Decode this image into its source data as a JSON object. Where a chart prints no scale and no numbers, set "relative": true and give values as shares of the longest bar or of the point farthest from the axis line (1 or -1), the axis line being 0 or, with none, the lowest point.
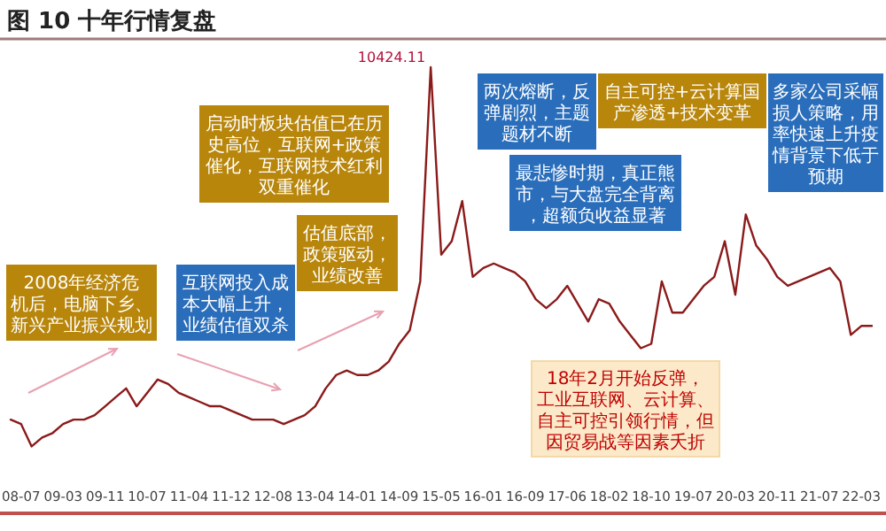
{
  "chart_data": {
    "type": "line",
    "title": "图 10 十年行情复盘",
    "relative": true,
    "categories": [
      null,
      "08-07",
      null,
      null,
      null,
      "09-03",
      null,
      null,
      null,
      "09-11",
      null,
      null,
      null,
      "10-07",
      null,
      null,
      null,
      "11-04",
      null,
      null,
      null,
      "11-12",
      null,
      null,
      null,
      "12-08",
      null,
      null,
      null,
      "13-04",
      null,
      null,
      null,
      "14-01",
      null,
      null,
      null,
      "14-09",
      null,
      null,
      null,
      "15-05",
      null,
      null,
      null,
      "16-01",
      null,
      null,
      null,
      "16-09",
      null,
      null,
      null,
      "17-06",
      null,
      null,
      null,
      "18-02",
      null,
      null,
      null,
      "18-10",
      null,
      null,
      null,
      "19-07",
      null,
      null,
      null,
      "20-03",
      null,
      null,
      null,
      "20-11",
      null,
      null,
      null,
      "21-07",
      null,
      null,
      null,
      "22-03",
      null
    ],
    "series": [
      {
        "color": "#8b1a1a",
        "values": [
          0.21,
          0.2,
          0.15,
          0.17,
          0.18,
          0.2,
          0.21,
          0.21,
          0.22,
          0.24,
          0.26,
          0.28,
          0.24,
          0.27,
          0.3,
          0.29,
          0.27,
          0.26,
          0.25,
          0.24,
          0.24,
          0.23,
          0.22,
          0.21,
          0.21,
          0.21,
          0.2,
          0.21,
          0.22,
          0.24,
          0.28,
          0.31,
          0.32,
          0.31,
          0.31,
          0.32,
          0.34,
          0.38,
          0.41,
          0.52,
          1,
          0.58,
          0.61,
          0.7,
          0.53,
          0.55,
          0.56,
          0.55,
          0.54,
          0.52,
          0.48,
          0.46,
          0.48,
          0.51,
          0.47,
          0.43,
          0.48,
          0.47,
          0.43,
          0.4,
          0.37,
          0.38,
          0.52,
          0.45,
          0.45,
          0.48,
          0.51,
          0.53,
          0.61,
          0.49,
          0.67,
          0.6,
          0.57,
          0.53,
          0.51,
          0.52,
          0.53,
          0.54,
          0.55,
          0.52,
          0.4,
          0.42,
          0.42
        ]
      }
    ],
    "annotations": [
      "10424.11",
      "2008年经济危机后，电脑下乡、新兴产业振兴规划",
      "互联网投入成本大幅上升，业绩估值双杀",
      "估值底部，政策驱动，业绩改善",
      "启动时板块估值已在历史高位，互联网+政策催化，互联网技术红利双重催化",
      "两次熔断，反弹剧烈，主题题材不断",
      "最悲惨时期，真正熊市，与大盘完全背离，超额负收益显著",
      "自主可控+云计算国产渗透+技术变革",
      "多家公司采幅损人策略，用率快速上升疫情背景下低于预期",
      "18年2月开始反弹，工业互联网、云计算、自主可控引领行情，但因贸易战等因素夭折"
    ]
  }
}
